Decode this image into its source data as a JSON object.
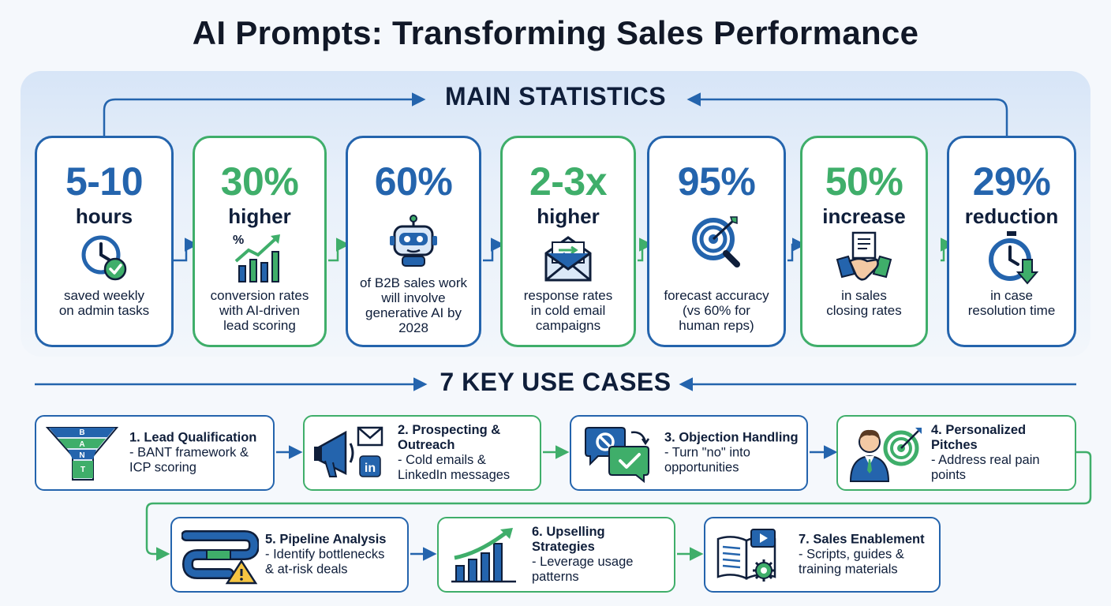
{
  "title": "AI Prompts: Transforming Sales Performance",
  "sections": {
    "stats_heading": "MAIN STATISTICS",
    "usecases_heading": "7 KEY USE CASES"
  },
  "colors": {
    "blue": "#2464ad",
    "green": "#3fae6a",
    "dark": "#0f1e3a"
  },
  "stats": [
    {
      "value": "5-10",
      "unit": "hours",
      "desc": "saved weekly\non admin tasks",
      "icon": "clock-check-icon",
      "color": "blue"
    },
    {
      "value": "30%",
      "unit": "higher",
      "desc": "conversion rates\nwith AI-driven\nlead scoring",
      "icon": "growth-chart-icon",
      "color": "green"
    },
    {
      "value": "60%",
      "unit": "",
      "desc": "of B2B sales work\nwill involve\ngenerative AI by\n2028",
      "icon": "robot-icon",
      "color": "blue"
    },
    {
      "value": "2-3x",
      "unit": "higher",
      "desc": "response rates\nin cold email\ncampaigns",
      "icon": "email-icon",
      "color": "green"
    },
    {
      "value": "95%",
      "unit": "",
      "desc": "forecast accuracy\n(vs 60% for\nhuman reps)",
      "icon": "target-magnifier-icon",
      "color": "blue"
    },
    {
      "value": "50%",
      "unit": "increase",
      "desc": "in sales\nclosing rates",
      "icon": "handshake-icon",
      "color": "green"
    },
    {
      "value": "29%",
      "unit": "reduction",
      "desc": "in case\nresolution time",
      "icon": "stopwatch-down-icon",
      "color": "blue"
    }
  ],
  "use_cases": [
    {
      "title": "1. Lead Qualification",
      "sub": "- BANT framework &\nICP scoring",
      "icon": "bant-funnel-icon",
      "funnel_letters": [
        "B",
        "A",
        "N",
        "T"
      ],
      "color": "blue"
    },
    {
      "title": "2. Prospecting &\nOutreach",
      "sub": "- Cold emails &\nLinkedIn messages",
      "icon": "megaphone-icon",
      "icon_badge": "in",
      "color": "green"
    },
    {
      "title": "3. Objection Handling",
      "sub": "- Turn \"no\" into\nopportunities",
      "icon": "chat-bubbles-icon",
      "color": "blue"
    },
    {
      "title": "4. Personalized\nPitches",
      "sub": "- Address real pain\npoints",
      "icon": "person-target-icon",
      "color": "green"
    },
    {
      "title": "5. Pipeline Analysis",
      "sub": "- Identify bottlenecks\n& at-risk deals",
      "icon": "pipeline-warning-icon",
      "color": "blue"
    },
    {
      "title": "6. Upselling Strategies",
      "sub": "- Leverage usage\npatterns",
      "icon": "bar-growth-icon",
      "color": "green"
    },
    {
      "title": "7. Sales Enablement",
      "sub": "- Scripts, guides &\ntraining materials",
      "icon": "book-video-icon",
      "color": "blue"
    }
  ]
}
